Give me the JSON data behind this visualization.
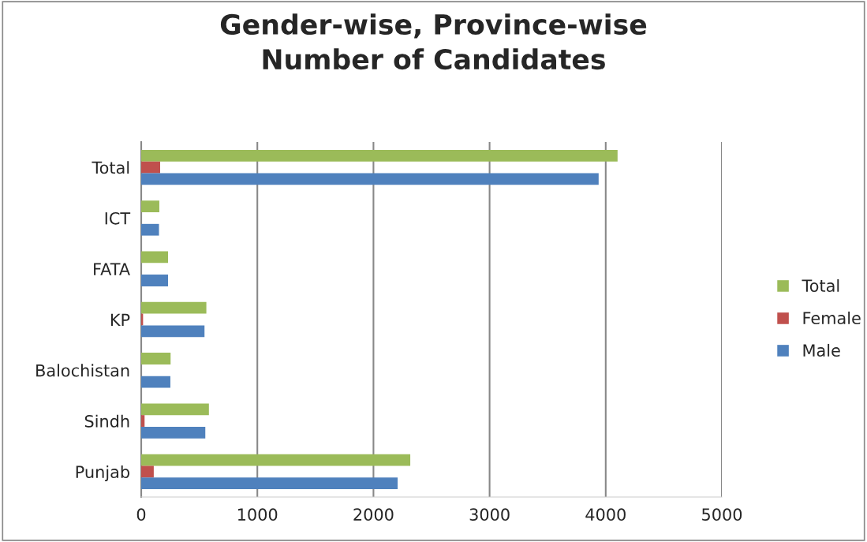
{
  "chart_data": {
    "type": "bar",
    "orientation": "horizontal",
    "title": "Gender-wise, Province-wise\nNumber of Candidates",
    "categories": [
      "Total",
      "ICT",
      "FATA",
      "KP",
      "Balochistan",
      "Sindh",
      "Punjab"
    ],
    "series": [
      {
        "name": "Total",
        "color": "#9bbb59",
        "values": [
          4102,
          156,
          231,
          561,
          253,
          583,
          2317
        ]
      },
      {
        "name": "Female",
        "color": "#c0504d",
        "values": [
          163,
          null,
          null,
          16,
          null,
          29,
          108
        ]
      },
      {
        "name": "Male",
        "color": "#4f81bd",
        "values": [
          3939,
          153,
          231,
          545,
          251,
          552,
          2208
        ]
      }
    ],
    "xlim": [
      0,
      5000
    ],
    "xticks": [
      0,
      1000,
      2000,
      3000,
      4000,
      5000
    ],
    "grid": "x",
    "legend": "right"
  }
}
